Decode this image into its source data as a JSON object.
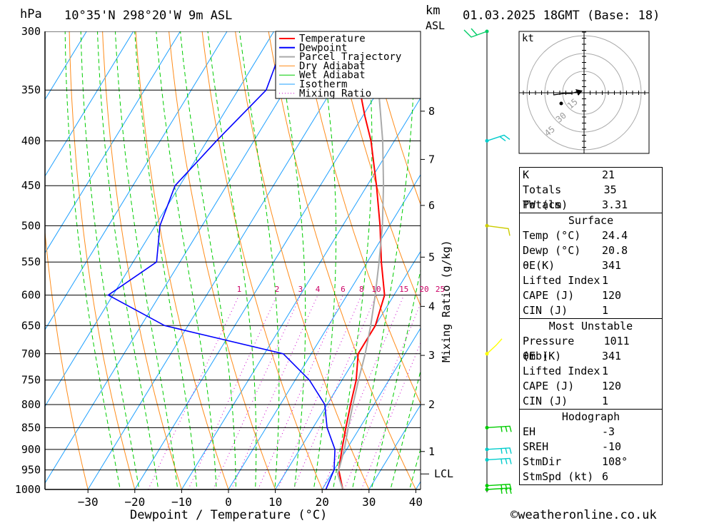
{
  "header": {
    "hpa_label": "hPa",
    "location": "10°35'N  298°20'W  9m  ASL",
    "km_label": "km",
    "asl_label": "ASL",
    "datetime": "01.03.2025  18GMT  (Base: 18)"
  },
  "footer": {
    "credit": "©weatheronline.co.uk"
  },
  "chart_data": {
    "type": "line",
    "subtype": "skew-t log-p sounding",
    "xlabel": "Dewpoint / Temperature (°C)",
    "ylabel_left": "hPa",
    "ylabel_right": "km ASL",
    "mixing_ratio_label": "Mixing Ratio (g/kg)",
    "x_ticks": [
      -30,
      -20,
      -10,
      0,
      10,
      20,
      30,
      40
    ],
    "pressure_levels": [
      300,
      350,
      400,
      450,
      500,
      550,
      600,
      650,
      700,
      750,
      800,
      850,
      900,
      950,
      1000
    ],
    "height_ticks": [
      {
        "label": "1",
        "p": 905
      },
      {
        "label": "2",
        "p": 800
      },
      {
        "label": "3",
        "p": 703
      },
      {
        "label": "4",
        "p": 618
      },
      {
        "label": "5",
        "p": 543
      },
      {
        "label": "6",
        "p": 474
      },
      {
        "label": "7",
        "p": 420
      },
      {
        "label": "8",
        "p": 370
      }
    ],
    "lcl": {
      "label": "LCL",
      "p": 960
    },
    "mixing_ratio_values": [
      "1",
      "2",
      "3",
      "4",
      "6",
      "8",
      "10",
      "15",
      "20",
      "25"
    ],
    "legend": [
      "Temperature",
      "Dewpoint",
      "Parcel Trajectory",
      "Dry Adiabat",
      "Wet Adiabat",
      "Isotherm",
      "Mixing Ratio"
    ],
    "legend_placement": "top",
    "series": [
      {
        "name": "Temperature",
        "color": "#ff0000",
        "points": [
          [
            1000,
            24.4
          ],
          [
            950,
            21.0
          ],
          [
            900,
            19.0
          ],
          [
            850,
            17.0
          ],
          [
            800,
            15.0
          ],
          [
            750,
            13.0
          ],
          [
            700,
            10.0
          ],
          [
            650,
            10.0
          ],
          [
            600,
            8.0
          ],
          [
            550,
            3.0
          ],
          [
            500,
            -2.0
          ],
          [
            450,
            -8.0
          ],
          [
            400,
            -15.0
          ],
          [
            375,
            -19.5
          ],
          [
            350,
            -24.0
          ],
          [
            300,
            -33.0
          ]
        ]
      },
      {
        "name": "Dewpoint",
        "color": "#0000ff",
        "points": [
          [
            1000,
            20.8
          ],
          [
            950,
            20.0
          ],
          [
            900,
            17.5
          ],
          [
            850,
            13.0
          ],
          [
            800,
            9.5
          ],
          [
            750,
            3.0
          ],
          [
            700,
            -6.0
          ],
          [
            650,
            -35.0
          ],
          [
            600,
            -51.0
          ],
          [
            550,
            -45.0
          ],
          [
            500,
            -49.0
          ],
          [
            450,
            -51.0
          ],
          [
            400,
            -48.0
          ],
          [
            350,
            -44.0
          ],
          [
            300,
            -47.0
          ]
        ]
      },
      {
        "name": "Parcel Trajectory",
        "color": "#aaaaaa",
        "points": [
          [
            1000,
            24.4
          ],
          [
            960,
            21.3
          ],
          [
            900,
            19.5
          ],
          [
            850,
            17.5
          ],
          [
            800,
            15.5
          ],
          [
            750,
            13.5
          ],
          [
            700,
            11.5
          ],
          [
            650,
            9.0
          ],
          [
            600,
            6.0
          ],
          [
            550,
            2.5
          ],
          [
            500,
            -1.5
          ],
          [
            450,
            -6.5
          ],
          [
            400,
            -12.5
          ],
          [
            350,
            -20.0
          ],
          [
            320,
            -25.0
          ]
        ]
      }
    ],
    "wind_profile": [
      {
        "p": 1000,
        "color": "#00cc00"
      },
      {
        "p": 990,
        "color": "#00cc00"
      },
      {
        "p": 925,
        "color": "#00cccc"
      },
      {
        "p": 900,
        "color": "#00cccc"
      },
      {
        "p": 850,
        "color": "#00cc00"
      },
      {
        "p": 700,
        "color": "#ffff00"
      },
      {
        "p": 500,
        "color": "#cccc00"
      },
      {
        "p": 400,
        "color": "#00cccc"
      },
      {
        "p": 300,
        "color": "#00cc66"
      }
    ],
    "hodograph": {
      "unit": "kt",
      "ring_labels": [
        "15",
        "30",
        "45"
      ]
    }
  },
  "indices": {
    "top": [
      {
        "label": "K",
        "value": "21"
      },
      {
        "label": "Totals Totals",
        "value": "35"
      },
      {
        "label": "PW (cm)",
        "value": "3.31"
      }
    ],
    "surface": {
      "title": "Surface",
      "rows": [
        {
          "label": "Temp (°C)",
          "value": "24.4"
        },
        {
          "label": "Dewp (°C)",
          "value": "20.8"
        },
        {
          "label": "θE(K)",
          "value": "341"
        },
        {
          "label": "Lifted Index",
          "value": "1"
        },
        {
          "label": "CAPE (J)",
          "value": "120"
        },
        {
          "label": "CIN (J)",
          "value": "1"
        }
      ]
    },
    "most_unstable": {
      "title": "Most Unstable",
      "rows": [
        {
          "label": "Pressure (mb)",
          "value": "1011"
        },
        {
          "label": "θE (K)",
          "value": "341"
        },
        {
          "label": "Lifted Index",
          "value": "1"
        },
        {
          "label": "CAPE (J)",
          "value": "120"
        },
        {
          "label": "CIN (J)",
          "value": "1"
        }
      ]
    },
    "hodograph": {
      "title": "Hodograph",
      "rows": [
        {
          "label": "EH",
          "value": "-3"
        },
        {
          "label": "SREH",
          "value": "-10"
        },
        {
          "label": "StmDir",
          "value": "108°"
        },
        {
          "label": "StmSpd (kt)",
          "value": "6"
        }
      ]
    }
  }
}
